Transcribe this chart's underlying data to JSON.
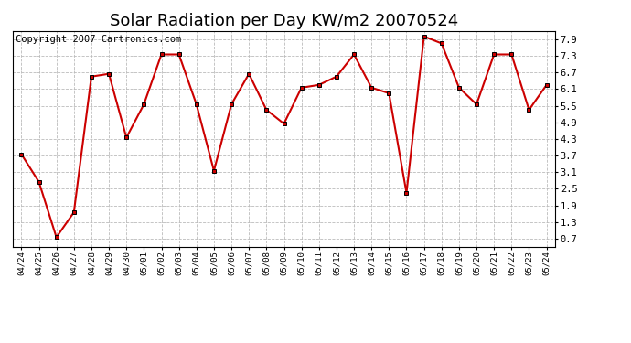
{
  "title": "Solar Radiation per Day KW/m2 20070524",
  "copyright": "Copyright 2007 Cartronics.com",
  "dates": [
    "04/24",
    "04/25",
    "04/26",
    "04/27",
    "04/28",
    "04/29",
    "04/30",
    "05/01",
    "05/02",
    "05/03",
    "05/04",
    "05/05",
    "05/06",
    "05/07",
    "05/08",
    "05/09",
    "05/10",
    "05/11",
    "05/12",
    "05/13",
    "05/14",
    "05/15",
    "05/16",
    "05/17",
    "05/18",
    "05/19",
    "05/20",
    "05/21",
    "05/22",
    "05/23",
    "05/24"
  ],
  "values": [
    3.75,
    2.75,
    0.75,
    1.65,
    6.55,
    6.65,
    4.35,
    5.55,
    7.35,
    7.35,
    5.55,
    3.15,
    5.55,
    6.65,
    5.35,
    4.85,
    6.15,
    6.25,
    6.55,
    7.35,
    6.15,
    5.95,
    2.35,
    8.0,
    7.75,
    6.15,
    5.55,
    7.35,
    7.35,
    5.35,
    6.25
  ],
  "line_color": "#cc0000",
  "marker_color": "#000000",
  "bg_color": "#ffffff",
  "plot_bg_color": "#ffffff",
  "grid_color": "#bbbbbb",
  "yticks": [
    0.7,
    1.3,
    1.9,
    2.5,
    3.1,
    3.7,
    4.3,
    4.9,
    5.5,
    6.1,
    6.7,
    7.3,
    7.9
  ],
  "ylim": [
    0.4,
    8.2
  ],
  "title_fontsize": 13,
  "copyright_fontsize": 7.5
}
